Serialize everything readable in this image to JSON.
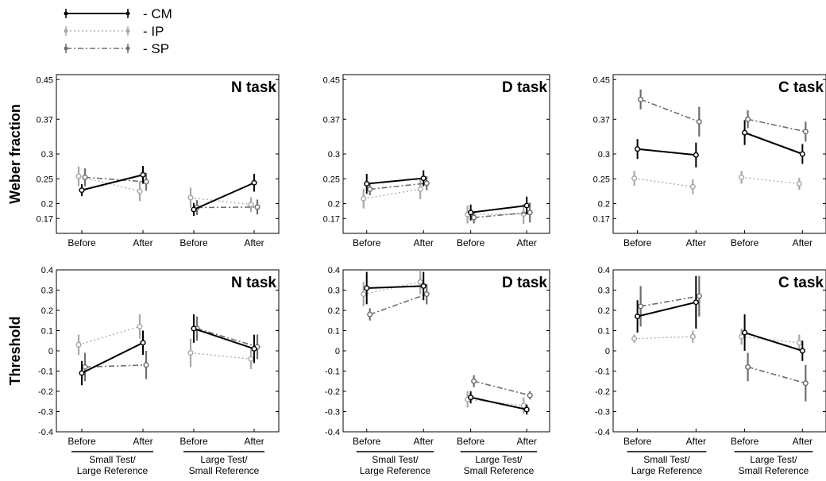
{
  "legend": [
    {
      "name": "- CM",
      "color": "#000000",
      "style": "solid"
    },
    {
      "name": "- IP",
      "color": "#a8a8a8",
      "style": "dotted"
    },
    {
      "name": "- SP",
      "color": "#6e6e6e",
      "style": "dashdot"
    }
  ],
  "row_labels": [
    "Weber fraction",
    "Threshold"
  ],
  "x_ticks": [
    "Before",
    "After",
    "Before",
    "After"
  ],
  "group_labels": [
    [
      "Small Test/",
      "Large Reference"
    ],
    [
      "Large Test/",
      "Small Reference"
    ]
  ],
  "chart_data": [
    {
      "type": "line",
      "title": "N task",
      "ylabel": "Weber fraction",
      "ylim": [
        0.14,
        0.46
      ],
      "yticks": [
        "0.45",
        "0.37",
        "0.3",
        "0.25",
        "0.2",
        "0.17"
      ],
      "ytick_values": [
        0.45,
        0.37,
        0.3,
        0.25,
        0.2,
        0.17
      ],
      "categories": [
        "Before",
        "After",
        "Before",
        "After"
      ],
      "series": [
        {
          "name": "CM",
          "values": [
            0.227,
            0.258,
            0.188,
            0.242
          ],
          "error": [
            0.012,
            0.018,
            0.013,
            0.018
          ]
        },
        {
          "name": "IP",
          "values": [
            0.255,
            0.225,
            0.212,
            0.198
          ],
          "error": [
            0.02,
            0.02,
            0.02,
            0.015
          ]
        },
        {
          "name": "SP",
          "values": [
            0.253,
            0.244,
            0.192,
            0.193
          ],
          "error": [
            0.018,
            0.018,
            0.015,
            0.015
          ]
        }
      ]
    },
    {
      "type": "line",
      "title": "D task",
      "ylabel": "",
      "ylim": [
        0.14,
        0.46
      ],
      "yticks": [
        "0.45",
        "0.37",
        "0.3",
        "0.25",
        "0.2",
        "0.17"
      ],
      "ytick_values": [
        0.45,
        0.37,
        0.3,
        0.25,
        0.2,
        0.17
      ],
      "categories": [
        "Before",
        "After",
        "Before",
        "After"
      ],
      "series": [
        {
          "name": "CM",
          "values": [
            0.24,
            0.251,
            0.182,
            0.196
          ],
          "error": [
            0.02,
            0.016,
            0.016,
            0.018
          ]
        },
        {
          "name": "IP",
          "values": [
            0.21,
            0.229,
            0.178,
            0.179
          ],
          "error": [
            0.02,
            0.02,
            0.018,
            0.02
          ]
        },
        {
          "name": "SP",
          "values": [
            0.229,
            0.241,
            0.172,
            0.182
          ],
          "error": [
            0.012,
            0.014,
            0.012,
            0.02
          ]
        }
      ]
    },
    {
      "type": "line",
      "title": "C task",
      "ylabel": "",
      "ylim": [
        0.14,
        0.46
      ],
      "yticks": [
        "0.45",
        "0.37",
        "0.3",
        "0.25",
        "0.2",
        "0.17"
      ],
      "ytick_values": [
        0.45,
        0.37,
        0.3,
        0.25,
        0.2,
        0.17
      ],
      "categories": [
        "Before",
        "After",
        "Before",
        "After"
      ],
      "series": [
        {
          "name": "CM",
          "values": [
            0.31,
            0.298,
            0.343,
            0.3
          ],
          "error": [
            0.02,
            0.025,
            0.025,
            0.02
          ]
        },
        {
          "name": "IP",
          "values": [
            0.251,
            0.234,
            0.253,
            0.24
          ],
          "error": [
            0.015,
            0.015,
            0.013,
            0.012
          ]
        },
        {
          "name": "SP",
          "values": [
            0.41,
            0.365,
            0.37,
            0.345
          ],
          "error": [
            0.02,
            0.03,
            0.018,
            0.02
          ]
        }
      ]
    },
    {
      "type": "line",
      "title": "N task",
      "ylabel": "Threshold",
      "ylim": [
        -0.4,
        0.4
      ],
      "yticks": [
        "0.4",
        "0.3",
        "0.2",
        "0.1",
        "0",
        "-0.1",
        "-0.2",
        "-0.3",
        "-0.4"
      ],
      "ytick_values": [
        0.4,
        0.3,
        0.2,
        0.1,
        0,
        -0.1,
        -0.2,
        -0.3,
        -0.4
      ],
      "categories": [
        "Before",
        "After",
        "Before",
        "After"
      ],
      "series": [
        {
          "name": "CM",
          "values": [
            -0.11,
            0.04,
            0.11,
            0.01
          ],
          "error": [
            0.06,
            0.06,
            0.07,
            0.07
          ]
        },
        {
          "name": "IP",
          "values": [
            0.03,
            0.12,
            -0.01,
            -0.04
          ],
          "error": [
            0.05,
            0.06,
            0.07,
            0.05
          ]
        },
        {
          "name": "SP",
          "values": [
            -0.08,
            -0.07,
            0.11,
            0.02
          ],
          "error": [
            0.07,
            0.07,
            0.06,
            0.06
          ]
        }
      ]
    },
    {
      "type": "line",
      "title": "D task",
      "ylabel": "",
      "ylim": [
        -0.4,
        0.4
      ],
      "yticks": [
        "0.4",
        "0.3",
        "0.2",
        "0.1",
        "0",
        "-0.1",
        "-0.2",
        "-0.3",
        "-0.4"
      ],
      "ytick_values": [
        0.4,
        0.3,
        0.2,
        0.1,
        0,
        -0.1,
        -0.2,
        -0.3,
        -0.4
      ],
      "categories": [
        "Before",
        "After",
        "Before",
        "After"
      ],
      "series": [
        {
          "name": "CM",
          "values": [
            0.31,
            0.32,
            -0.23,
            -0.29
          ],
          "error": [
            0.08,
            0.07,
            0.03,
            0.025
          ]
        },
        {
          "name": "IP",
          "values": [
            0.28,
            0.34,
            -0.24,
            -0.27
          ],
          "error": [
            0.06,
            0.06,
            0.04,
            0.04
          ]
        },
        {
          "name": "SP",
          "values": [
            0.18,
            0.28,
            -0.15,
            -0.22
          ],
          "error": [
            0.03,
            0.05,
            0.03,
            0.02
          ]
        }
      ]
    },
    {
      "type": "line",
      "title": "C task",
      "ylabel": "",
      "ylim": [
        -0.4,
        0.4
      ],
      "yticks": [
        "0.4",
        "0.3",
        "0.2",
        "0.1",
        "0",
        "-0.1",
        "-0.2",
        "-0.3",
        "-0.4"
      ],
      "ytick_values": [
        0.4,
        0.3,
        0.2,
        0.1,
        0,
        -0.1,
        -0.2,
        -0.3,
        -0.4
      ],
      "categories": [
        "Before",
        "After",
        "Before",
        "After"
      ],
      "series": [
        {
          "name": "CM",
          "values": [
            0.17,
            0.24,
            0.09,
            0.0
          ],
          "error": [
            0.08,
            0.13,
            0.09,
            0.05
          ]
        },
        {
          "name": "IP",
          "values": [
            0.06,
            0.07,
            0.07,
            0.04
          ],
          "error": [
            0.02,
            0.03,
            0.04,
            0.04
          ]
        },
        {
          "name": "SP",
          "values": [
            0.22,
            0.27,
            -0.08,
            -0.16
          ],
          "error": [
            0.1,
            0.1,
            0.07,
            0.09
          ]
        }
      ]
    }
  ]
}
